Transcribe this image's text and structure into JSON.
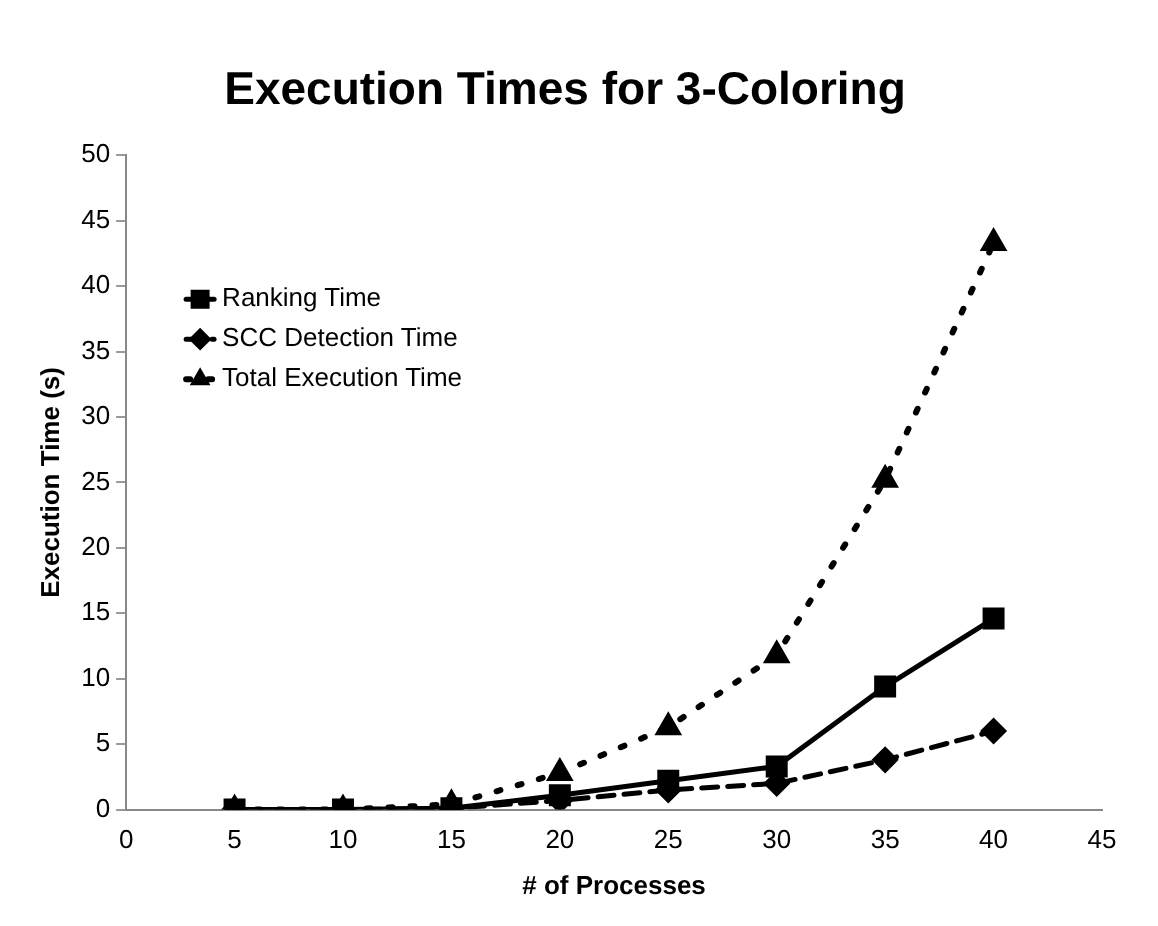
{
  "chart_data": {
    "type": "line",
    "title": "Execution Times for 3-Coloring",
    "xlabel": "# of Processes",
    "ylabel": "Execution Time (s)",
    "x": [
      5,
      10,
      15,
      20,
      25,
      30,
      35,
      40
    ],
    "series": [
      {
        "name": "Ranking Time",
        "color": "#000000",
        "marker": "square",
        "line_style": "solid",
        "values": [
          0,
          0,
          0.1,
          1.1,
          2.2,
          3.3,
          9.4,
          14.6
        ]
      },
      {
        "name": "SCC Detection Time",
        "color": "#000000",
        "marker": "diamond",
        "line_style": "dashed",
        "values": [
          0,
          0,
          0.1,
          0.7,
          1.5,
          2,
          3.8,
          6
        ]
      },
      {
        "name": "Total Execution Time",
        "color": "#000000",
        "marker": "triangle",
        "line_style": "dotted",
        "values": [
          0,
          0,
          0.4,
          2.8,
          6.3,
          11.8,
          25.2,
          43.3
        ]
      }
    ],
    "xlim": [
      0,
      45
    ],
    "xticks": [
      0,
      5,
      10,
      15,
      20,
      25,
      30,
      35,
      40,
      45
    ],
    "ylim": [
      0,
      50
    ],
    "yticks": [
      0,
      5,
      10,
      15,
      20,
      25,
      30,
      35,
      40,
      45,
      50
    ],
    "grid": false,
    "legend": "top left"
  }
}
